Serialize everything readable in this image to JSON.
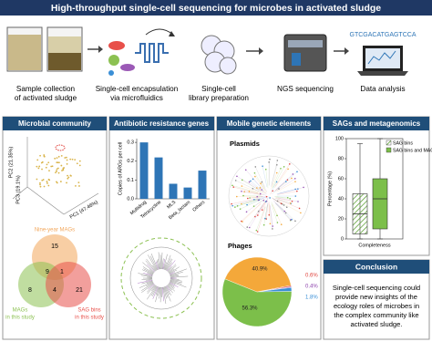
{
  "title": "High-throughput single-cell sequencing for microbes in activated sludge",
  "workflow": {
    "steps": [
      {
        "lines": [
          "Sample collection",
          "of activated sludge"
        ]
      },
      {
        "lines": [
          "Single-cell encapsulation",
          "via microfluidics"
        ]
      },
      {
        "lines": [
          "Single-cell",
          "library preparation"
        ]
      },
      {
        "lines": [
          "NGS sequencing"
        ]
      },
      {
        "lines": [
          "Data analysis"
        ]
      }
    ],
    "sequence_text": "GTCGACATGAGTCCA"
  },
  "panels": {
    "microbial_community": {
      "title": "Microbial community",
      "pca_axes": [
        "PC1 (47.46%)",
        "PC2 (21.35%)",
        "PC3 (19.1%)"
      ],
      "venn": {
        "sets": [
          [
            "Nine-year MAGs"
          ],
          [
            "MAGs",
            "in this study"
          ],
          [
            "SAG bins",
            "in this study"
          ]
        ],
        "colors": [
          "#f2a65a",
          "#8cc152",
          "#e8504a"
        ],
        "counts": [
          "15",
          "8",
          "9",
          "1",
          "4",
          "21"
        ]
      }
    },
    "antibiotic_resistance": {
      "title": "Antibiotic resistance genes",
      "chart": {
        "type": "bar",
        "ylabel": "Copies of ARGs per cell",
        "categories": [
          "Multidrug",
          "Tetracycline",
          "MLS",
          "Beta_lactam",
          "Others"
        ],
        "values": [
          0.3,
          0.22,
          0.08,
          0.06,
          0.15
        ],
        "ylim": [
          0,
          0.32
        ],
        "yticks": [
          {
            "value": 0,
            "label": "0.0"
          },
          0.1,
          0.2,
          0.3
        ],
        "color": "#2e75b6"
      }
    },
    "mobile_genetic_elements": {
      "title": "Mobile genetic elements",
      "plasmids_label": "Plasmids",
      "phages_label": "Phages",
      "pie": {
        "type": "pie",
        "values": [
          0.6,
          0.4,
          1.8,
          56.3,
          40.9
        ],
        "value_labels": [
          "0.6%",
          "0.4%",
          "1.8%",
          "56.3%",
          "40.9%"
        ],
        "colors": [
          "#e0443e",
          "#8e44ad",
          "#3a8fd6",
          "#7cbf4a",
          "#f4a83a"
        ]
      }
    },
    "sags_metagenomics": {
      "title": "SAGs and metagenomics",
      "chart": {
        "type": "box",
        "ylabel": "Percentage (%)",
        "xlabel": "Completeness",
        "ylim": [
          0,
          100
        ],
        "yticks": [
          0,
          20,
          40,
          60,
          80,
          100
        ],
        "series": [
          {
            "name": "SAG bins",
            "color": "#7cbf4a",
            "hatch": true,
            "whisker_low": 0,
            "q1": 5,
            "median": 25,
            "q3": 45,
            "whisker_high": 95
          },
          {
            "name": "SAG bins and MAGs",
            "color": "#7cbf4a",
            "hatch": false,
            "whisker_low": 0,
            "q1": 10,
            "median": 40,
            "q3": 60,
            "whisker_high": 100
          }
        ]
      }
    },
    "conclusion": {
      "title": "Conclusion",
      "lines": [
        "Single-cell sequencing could",
        "provide new insights of the",
        "ecology roles of microbes in",
        "the complex community like",
        "activated sludge."
      ]
    }
  }
}
